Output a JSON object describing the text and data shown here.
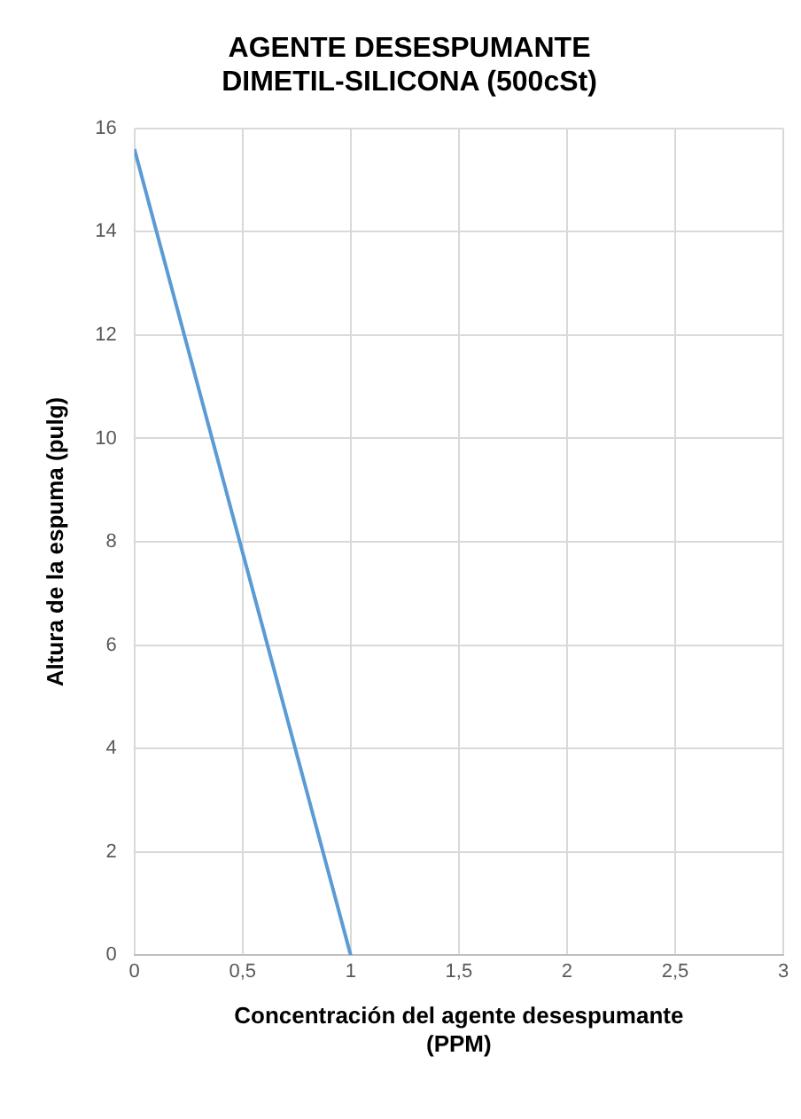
{
  "chart_data": {
    "type": "line",
    "title": "AGENTE DESESPUMANTE\nDIMETIL-SILICONA (500cSt)",
    "xlabel": "Concentración del agente desespumante\n(PPM)",
    "ylabel": "Altura de la espuma (pulg)",
    "x": [
      0,
      1
    ],
    "series": [
      {
        "color": "#5b9bd5",
        "values": [
          15.6,
          0
        ]
      }
    ],
    "xlim": [
      0,
      3
    ],
    "xticks": [
      0,
      {
        "value": 0.5,
        "label": "0,5"
      },
      1,
      {
        "value": 1.5,
        "label": "1,5"
      },
      2,
      {
        "value": 2.5,
        "label": "2,5"
      },
      3
    ],
    "ylim": [
      0,
      16
    ],
    "yticks": [
      0,
      2,
      4,
      6,
      8,
      10,
      12,
      14,
      16
    ],
    "grid": true,
    "legend": false,
    "marker": "none",
    "line_style": "solid"
  }
}
